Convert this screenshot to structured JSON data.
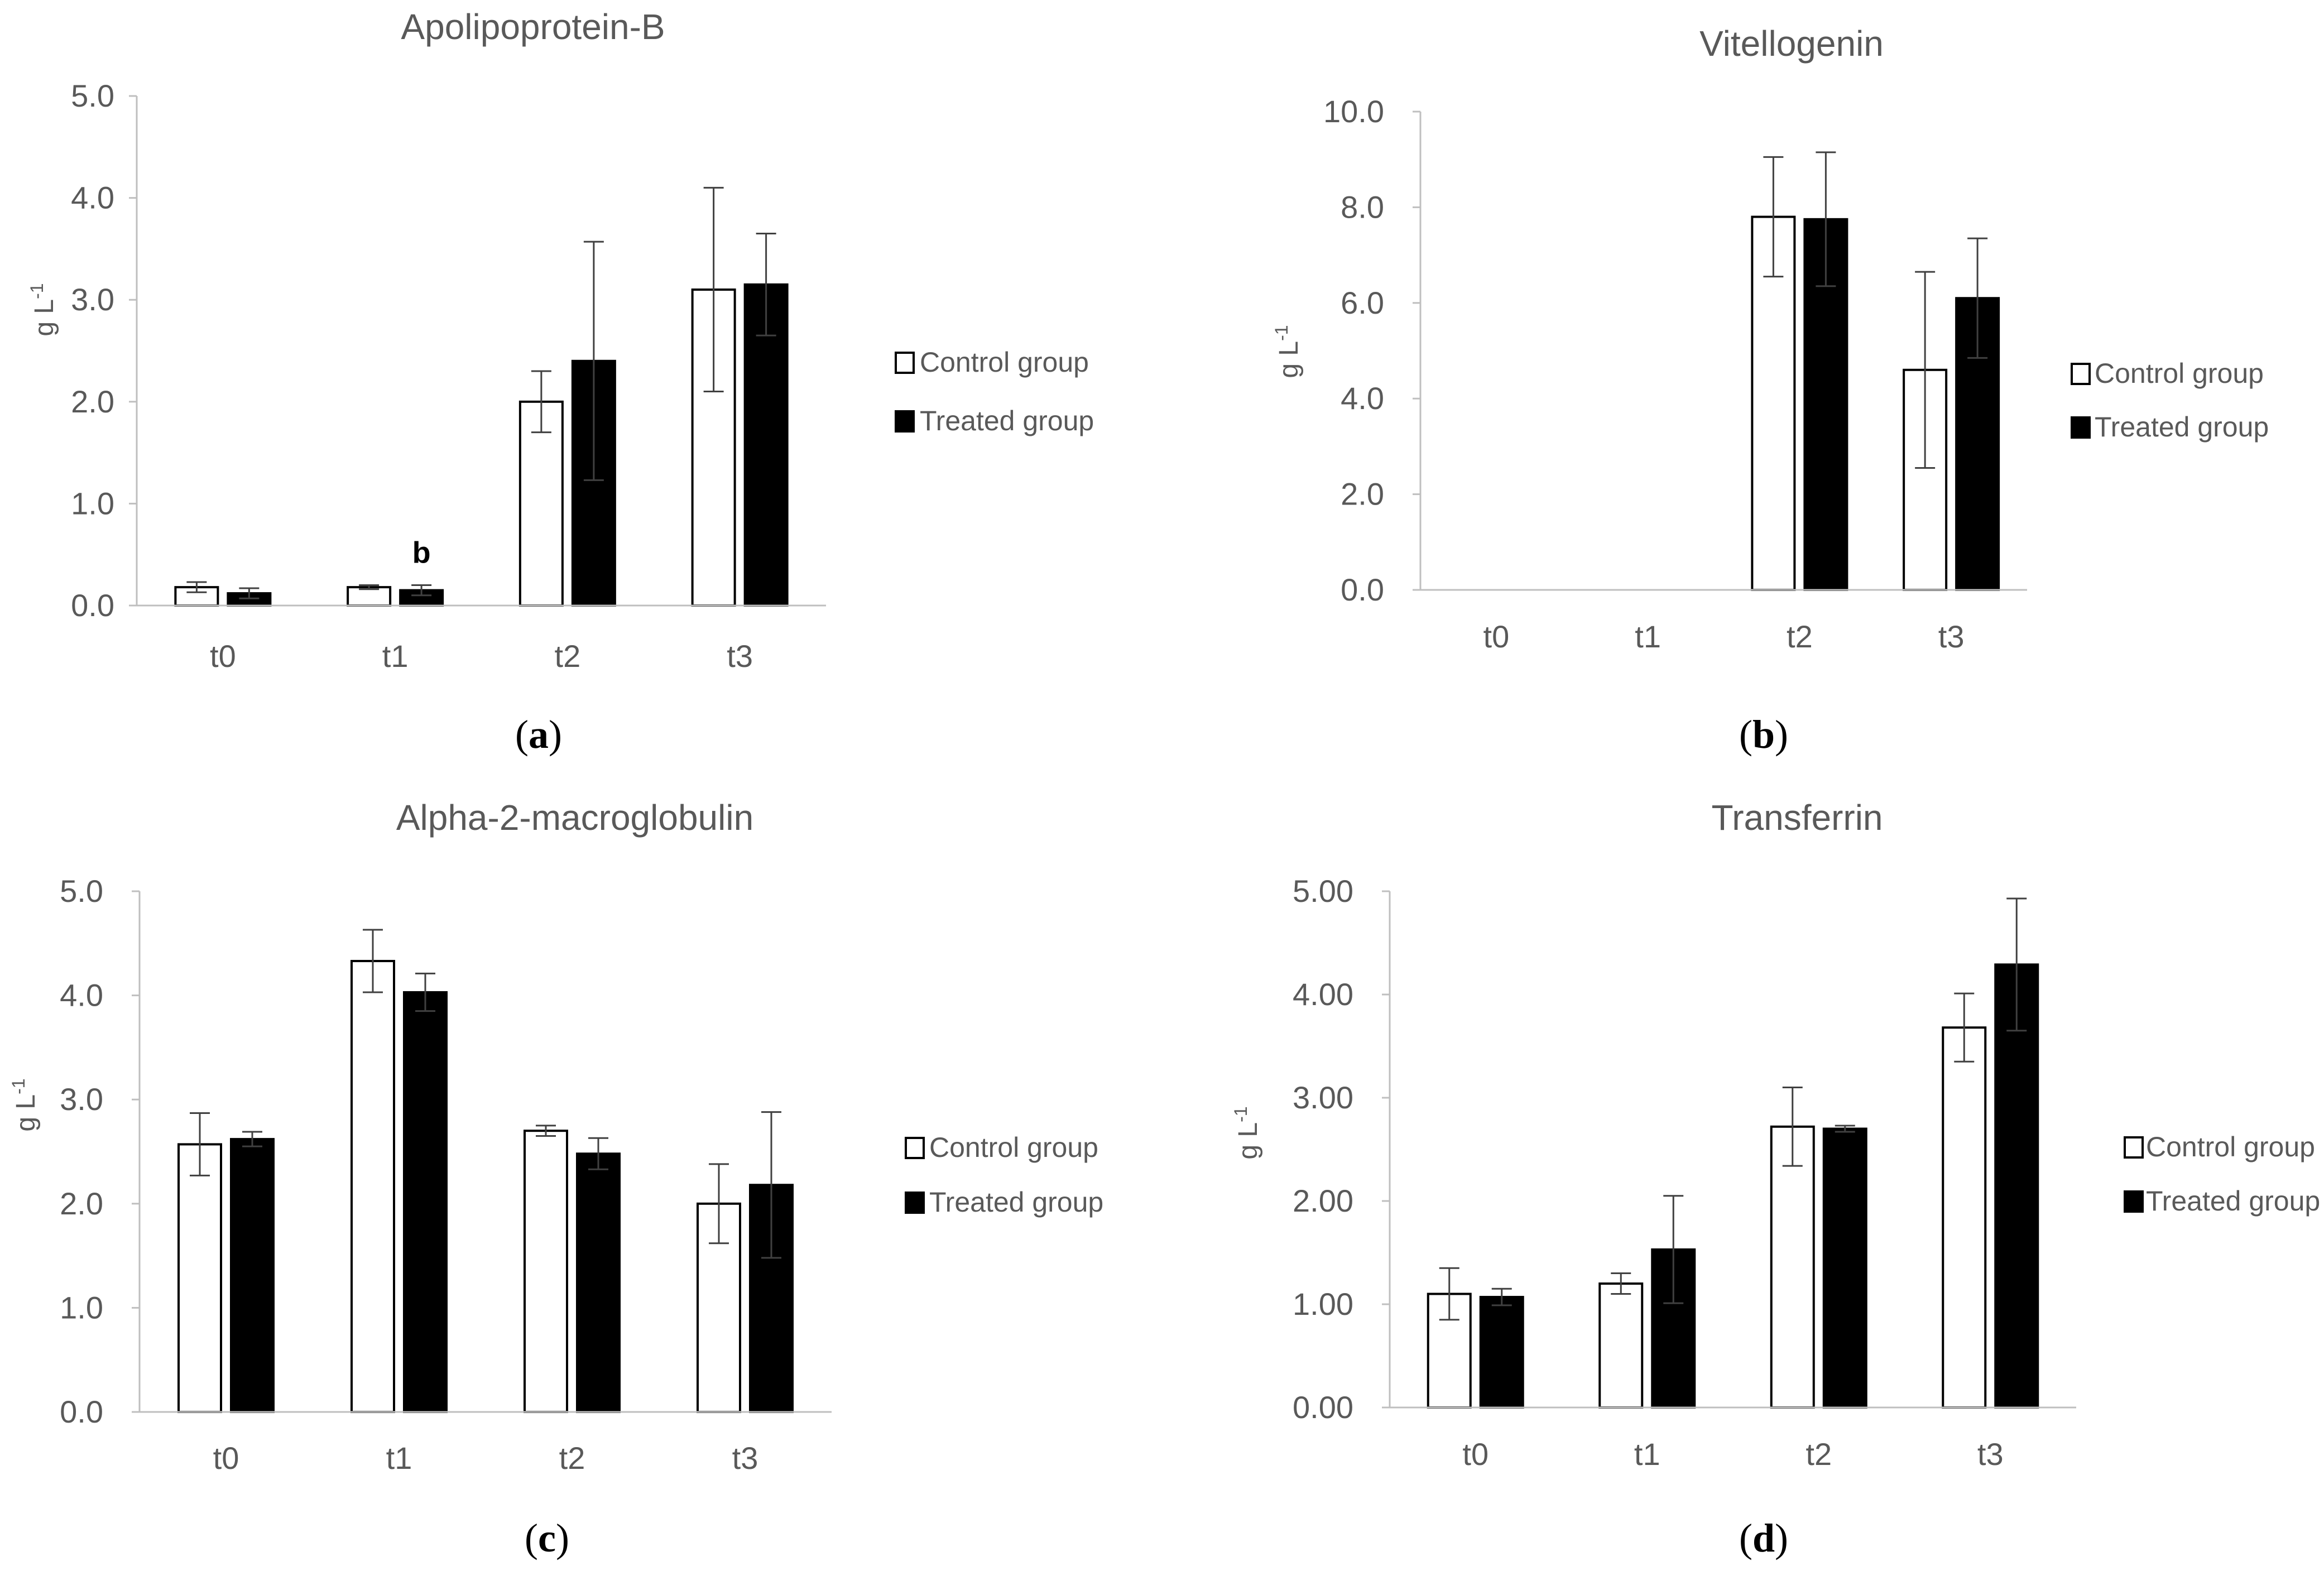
{
  "chart_data": [
    {
      "type": "bar",
      "title": "Apolipoprotein-B",
      "panel_label": "a",
      "ylabel": "g L",
      "ylabel_sup": "-1",
      "xlabel": "",
      "categories": [
        "t0",
        "t1",
        "t2",
        "t3"
      ],
      "ylim": [
        0,
        5
      ],
      "yticks": [
        "0.0",
        "1.0",
        "2.0",
        "3.0",
        "4.0",
        "5.0"
      ],
      "series": [
        {
          "name": "Control group",
          "values": [
            0.18,
            0.18,
            2.0,
            3.1
          ],
          "errors": [
            0.05,
            0.02,
            0.3,
            1.0
          ]
        },
        {
          "name": "Treated group",
          "values": [
            0.12,
            0.15,
            2.4,
            3.15
          ],
          "errors": [
            0.05,
            0.05,
            1.17,
            0.5
          ]
        }
      ],
      "annotations": [
        {
          "text": "b",
          "category": "t1",
          "series": 1
        }
      ]
    },
    {
      "type": "bar",
      "title": "Vitellogenin",
      "panel_label": "b",
      "ylabel": "g L",
      "ylabel_sup": "-1",
      "xlabel": "",
      "categories": [
        "t0",
        "t1",
        "t2",
        "t3"
      ],
      "ylim": [
        0,
        10
      ],
      "yticks": [
        "0.0",
        "2.0",
        "4.0",
        "6.0",
        "8.0",
        "10.0"
      ],
      "series": [
        {
          "name": "Control group",
          "values": [
            0,
            0,
            7.8,
            4.6
          ],
          "errors": [
            0,
            0,
            1.25,
            2.05
          ]
        },
        {
          "name": "Treated group",
          "values": [
            0,
            0,
            7.75,
            6.1
          ],
          "errors": [
            0,
            0,
            1.4,
            1.25
          ]
        }
      ],
      "annotations": []
    },
    {
      "type": "bar",
      "title": "Alpha-2-macroglobulin",
      "panel_label": "c",
      "ylabel": "g L",
      "ylabel_sup": "-1",
      "xlabel": "",
      "categories": [
        "t0",
        "t1",
        "t2",
        "t3"
      ],
      "ylim": [
        0,
        5
      ],
      "yticks": [
        "0.0",
        "1.0",
        "2.0",
        "3.0",
        "4.0",
        "5.0"
      ],
      "series": [
        {
          "name": "Control group",
          "values": [
            2.57,
            4.33,
            2.7,
            2.0
          ],
          "errors": [
            0.3,
            0.3,
            0.05,
            0.38
          ]
        },
        {
          "name": "Treated group",
          "values": [
            2.62,
            4.03,
            2.48,
            2.18
          ],
          "errors": [
            0.07,
            0.18,
            0.15,
            0.7
          ]
        }
      ],
      "annotations": []
    },
    {
      "type": "bar",
      "title": "Transferrin",
      "panel_label": "d",
      "ylabel": "g L",
      "ylabel_sup": "-1",
      "xlabel": "",
      "categories": [
        "t0",
        "t1",
        "t2",
        "t3"
      ],
      "ylim": [
        0,
        5
      ],
      "yticks": [
        "0.00",
        "1.00",
        "2.00",
        "3.00",
        "4.00",
        "5.00"
      ],
      "series": [
        {
          "name": "Control group",
          "values": [
            1.1,
            1.2,
            2.72,
            3.68
          ],
          "errors": [
            0.25,
            0.1,
            0.38,
            0.33
          ]
        },
        {
          "name": "Treated group",
          "values": [
            1.07,
            1.53,
            2.7,
            4.29
          ],
          "errors": [
            0.08,
            0.52,
            0.03,
            0.64
          ]
        }
      ],
      "annotations": []
    }
  ]
}
